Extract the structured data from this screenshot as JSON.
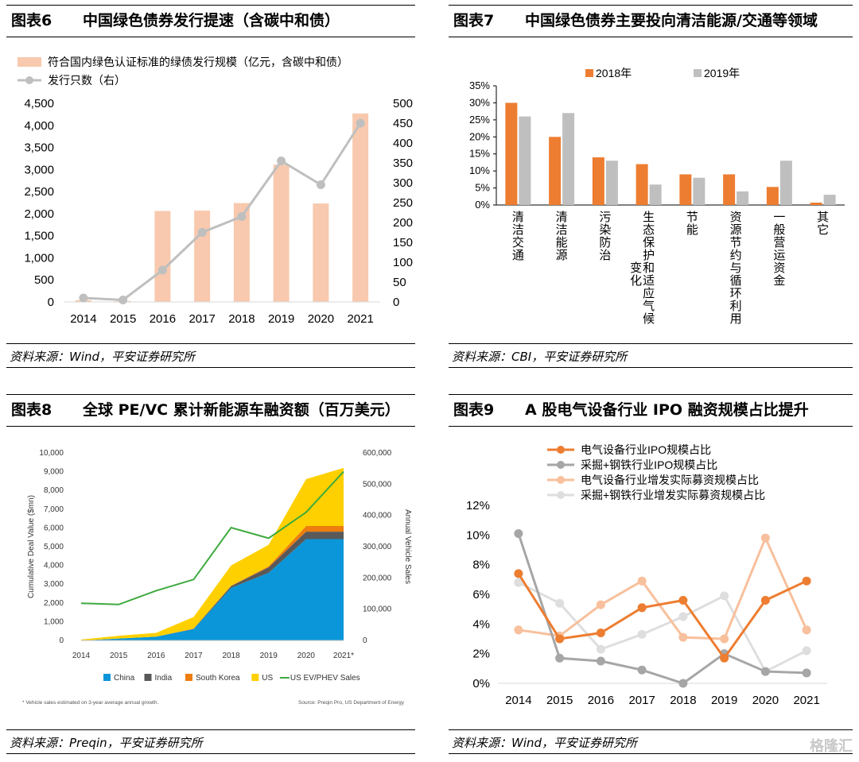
{
  "panels": {
    "p6": {
      "num": "图表6",
      "title": "中国绿色债券发行提速（含碳中和债）",
      "source": "资料来源：Wind，平安证券研究所"
    },
    "p7": {
      "num": "图表7",
      "title": "中国绿色债券主要投向清洁能源/交通等领域",
      "source": "资料来源：CBI，平安证券研究所"
    },
    "p8": {
      "num": "图表8",
      "title": "全球 PE/VC 累计新能源车融资额（百万美元）",
      "source": "资料来源：Preqin，平安证券研究所"
    },
    "p9": {
      "num": "图表9",
      "title": "A 股电气设备行业 IPO 融资规模占比提升",
      "source": "资料来源：Wind，平安证券研究所"
    }
  },
  "watermark": "格隆汇",
  "chart_data": [
    {
      "id": "chart6",
      "type": "bar+line",
      "categories": [
        "2014",
        "2015",
        "2016",
        "2017",
        "2018",
        "2019",
        "2020",
        "2021"
      ],
      "series": [
        {
          "name": "符合国内绿色认证标准的绿债发行规模（亿元，含碳中和债）",
          "type": "bar",
          "axis": "left",
          "color": "#F8C9AE",
          "values": [
            40,
            20,
            2060,
            2070,
            2240,
            3110,
            2230,
            4270
          ]
        },
        {
          "name": "发行只数（右）",
          "type": "line",
          "axis": "right",
          "color": "#BFBFBF",
          "values": [
            10,
            5,
            80,
            175,
            215,
            355,
            295,
            450
          ]
        }
      ],
      "yleft": {
        "min": 0,
        "max": 4500,
        "ticks": [
          "0",
          "500",
          "1,000",
          "1,500",
          "2,000",
          "2,500",
          "3,000",
          "3,500",
          "4,000",
          "4,500"
        ]
      },
      "yright": {
        "min": 0,
        "max": 500,
        "ticks": [
          "0",
          "50",
          "100",
          "150",
          "200",
          "250",
          "300",
          "350",
          "400",
          "450",
          "500"
        ]
      },
      "legend": "top-left"
    },
    {
      "id": "chart7",
      "type": "bar",
      "categories": [
        "清洁交通",
        "清洁能源",
        "污染防治",
        "生态保护和适应气候变化",
        "节能",
        "资源节约与循环利用",
        "一般营运资金",
        "其它"
      ],
      "category_lines": [
        [
          "清洁交通"
        ],
        [
          "清洁能源"
        ],
        [
          "污染防治"
        ],
        [
          "生态保护和适应气候",
          "变化"
        ],
        [
          "节能"
        ],
        [
          "资源节约与循环利用"
        ],
        [
          "一般营运资金"
        ],
        [
          "其它"
        ]
      ],
      "series": [
        {
          "name": "2018年",
          "color": "#ED7D31",
          "values": [
            30,
            20,
            14,
            12,
            9,
            9,
            5.3,
            0.7
          ]
        },
        {
          "name": "2019年",
          "color": "#BFBFBF",
          "values": [
            26,
            27,
            13,
            6,
            8,
            4,
            13,
            3
          ]
        }
      ],
      "y": {
        "min": 0,
        "max": 35,
        "ticks": [
          "0%",
          "5%",
          "10%",
          "15%",
          "20%",
          "25%",
          "30%",
          "35%"
        ]
      },
      "legend": "top"
    },
    {
      "id": "chart8",
      "type": "stacked-area+line",
      "categories": [
        "2014",
        "2015",
        "2016",
        "2017",
        "2018",
        "2019",
        "2020",
        "2021*"
      ],
      "series": [
        {
          "name": "China",
          "type": "area",
          "color": "#0A96D8",
          "values": [
            0,
            100,
            200,
            600,
            2800,
            3600,
            5400,
            5400
          ]
        },
        {
          "name": "India",
          "type": "area",
          "color": "#595959",
          "values": [
            0,
            0,
            0,
            20,
            100,
            300,
            400,
            400
          ]
        },
        {
          "name": "South Korea",
          "type": "area",
          "color": "#ED7D0E",
          "values": [
            0,
            0,
            0,
            10,
            20,
            50,
            300,
            300
          ]
        },
        {
          "name": "US",
          "type": "area",
          "color": "#FFD000",
          "values": [
            50,
            150,
            200,
            620,
            1080,
            1150,
            2500,
            3100
          ]
        },
        {
          "name": "US EV/PHEV Sales",
          "type": "line",
          "axis": "right",
          "color": "#3DAA3D",
          "values": [
            119000,
            115000,
            159000,
            195000,
            361000,
            327000,
            410000,
            540000
          ]
        }
      ],
      "yleft": {
        "label": "Cumulative Deal Value ($mn)",
        "min": 0,
        "max": 10000,
        "ticks": [
          "0",
          "1,000",
          "2,000",
          "3,000",
          "4,000",
          "5,000",
          "6,000",
          "7,000",
          "8,000",
          "9,000",
          "10,000"
        ]
      },
      "yright": {
        "label": "Annual Vehicle Sales",
        "min": 0,
        "max": 600000,
        "ticks": [
          "0",
          "100,000",
          "200,000",
          "300,000",
          "400,000",
          "500,000",
          "600,000"
        ]
      },
      "footnote": "* Vehicle sales estimated on 3-year average annual growth.",
      "source_note": "Source: Preqin Pro, US Department of Energy",
      "legend": "bottom"
    },
    {
      "id": "chart9",
      "type": "line",
      "categories": [
        "2014",
        "2015",
        "2016",
        "2017",
        "2018",
        "2019",
        "2020",
        "2021"
      ],
      "series": [
        {
          "name": "电气设备行业IPO规模占比",
          "color": "#ED7D31",
          "values": [
            7.4,
            3.0,
            3.4,
            5.1,
            5.6,
            1.7,
            5.6,
            6.9
          ]
        },
        {
          "name": "采掘+钢铁行业IPO规模占比",
          "color": "#A6A6A6",
          "values": [
            10.1,
            1.7,
            1.5,
            0.9,
            0.0,
            2.0,
            0.8,
            0.7
          ]
        },
        {
          "name": "电气设备行业增发实际募资规模占比",
          "color": "#F8C09C",
          "values": [
            3.6,
            3.2,
            5.3,
            6.9,
            3.1,
            3.0,
            9.8,
            3.6
          ]
        },
        {
          "name": "采掘+钢铁行业增发实际募资规模占比",
          "color": "#DEDEDE",
          "values": [
            6.8,
            5.4,
            2.3,
            3.3,
            4.5,
            5.9,
            0.8,
            2.2
          ]
        }
      ],
      "y": {
        "min": 0,
        "max": 12,
        "ticks": [
          "0%",
          "2%",
          "4%",
          "6%",
          "8%",
          "10%",
          "12%"
        ]
      },
      "legend": "top-left"
    }
  ]
}
